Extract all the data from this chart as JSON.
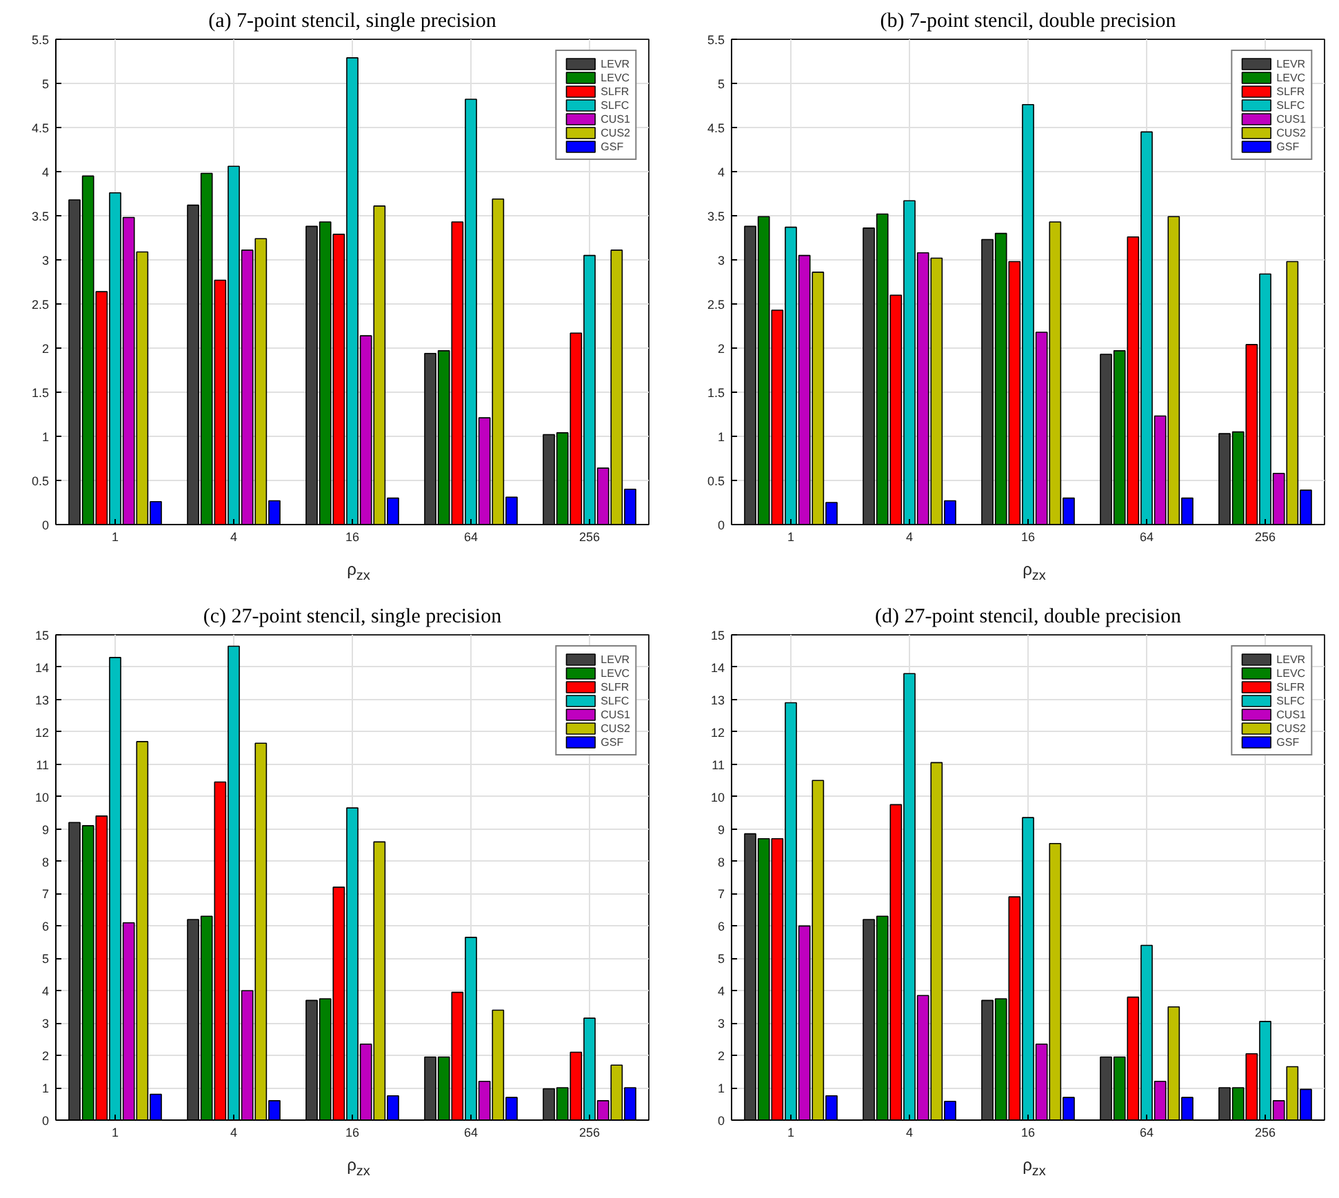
{
  "chart_data": [
    {
      "type": "bar",
      "title": "(a) 7-point stencil, single precision",
      "xlabel": "ρ$_{zx}$",
      "categories": [
        "1",
        "4",
        "16",
        "64",
        "256"
      ],
      "ylim": [
        0,
        5.5
      ],
      "yticks": [
        0,
        0.5,
        1,
        1.5,
        2,
        2.5,
        3,
        3.5,
        4,
        4.5,
        5,
        5.5
      ],
      "grid": true,
      "legend": "top right",
      "series": [
        {
          "name": "LEVR",
          "color": "#404040",
          "values": [
            3.68,
            3.62,
            3.38,
            1.94,
            1.02
          ]
        },
        {
          "name": "LEVC",
          "color": "#008000",
          "values": [
            3.95,
            3.98,
            3.43,
            1.97,
            1.04
          ]
        },
        {
          "name": "SLFR",
          "color": "#ff0000",
          "values": [
            2.64,
            2.77,
            3.29,
            3.43,
            2.17
          ]
        },
        {
          "name": "SLFC",
          "color": "#00bfbf",
          "values": [
            3.76,
            4.06,
            5.29,
            4.82,
            3.05
          ]
        },
        {
          "name": "CUS1",
          "color": "#bf00bf",
          "values": [
            3.48,
            3.11,
            2.14,
            1.21,
            0.64
          ]
        },
        {
          "name": "CUS2",
          "color": "#bfbf00",
          "values": [
            3.09,
            3.24,
            3.61,
            3.69,
            3.11
          ]
        },
        {
          "name": "GSF",
          "color": "#0000ff",
          "values": [
            0.26,
            0.27,
            0.3,
            0.31,
            0.4
          ]
        }
      ]
    },
    {
      "type": "bar",
      "title": "(b) 7-point stencil, double precision",
      "xlabel": "ρ$_{zx}$",
      "categories": [
        "1",
        "4",
        "16",
        "64",
        "256"
      ],
      "ylim": [
        0,
        5.5
      ],
      "yticks": [
        0,
        0.5,
        1,
        1.5,
        2,
        2.5,
        3,
        3.5,
        4,
        4.5,
        5,
        5.5
      ],
      "grid": true,
      "legend": "top right",
      "series": [
        {
          "name": "LEVR",
          "color": "#404040",
          "values": [
            3.38,
            3.36,
            3.23,
            1.93,
            1.03
          ]
        },
        {
          "name": "LEVC",
          "color": "#008000",
          "values": [
            3.49,
            3.52,
            3.3,
            1.97,
            1.05
          ]
        },
        {
          "name": "SLFR",
          "color": "#ff0000",
          "values": [
            2.43,
            2.6,
            2.98,
            3.26,
            2.04
          ]
        },
        {
          "name": "SLFC",
          "color": "#00bfbf",
          "values": [
            3.37,
            3.67,
            4.76,
            4.45,
            2.84
          ]
        },
        {
          "name": "CUS1",
          "color": "#bf00bf",
          "values": [
            3.05,
            3.08,
            2.18,
            1.23,
            0.58
          ]
        },
        {
          "name": "CUS2",
          "color": "#bfbf00",
          "values": [
            2.86,
            3.02,
            3.43,
            3.49,
            2.98
          ]
        },
        {
          "name": "GSF",
          "color": "#0000ff",
          "values": [
            0.25,
            0.27,
            0.3,
            0.3,
            0.39
          ]
        }
      ]
    },
    {
      "type": "bar",
      "title": "(c) 27-point stencil, single precision",
      "xlabel": "ρ$_{zx}$",
      "categories": [
        "1",
        "4",
        "16",
        "64",
        "256"
      ],
      "ylim": [
        0,
        15
      ],
      "yticks": [
        0,
        1,
        2,
        3,
        4,
        5,
        6,
        7,
        8,
        9,
        10,
        11,
        12,
        13,
        14,
        15
      ],
      "grid": true,
      "legend": "top right",
      "series": [
        {
          "name": "LEVR",
          "color": "#404040",
          "values": [
            9.2,
            6.2,
            3.7,
            1.95,
            0.97
          ]
        },
        {
          "name": "LEVC",
          "color": "#008000",
          "values": [
            9.1,
            6.3,
            3.75,
            1.95,
            1.0
          ]
        },
        {
          "name": "SLFR",
          "color": "#ff0000",
          "values": [
            9.4,
            10.45,
            7.2,
            3.95,
            2.1
          ]
        },
        {
          "name": "SLFC",
          "color": "#00bfbf",
          "values": [
            14.3,
            14.65,
            9.65,
            5.65,
            3.15
          ]
        },
        {
          "name": "CUS1",
          "color": "#bf00bf",
          "values": [
            6.1,
            4.0,
            2.35,
            1.2,
            0.6
          ]
        },
        {
          "name": "CUS2",
          "color": "#bfbf00",
          "values": [
            11.7,
            11.65,
            8.6,
            3.4,
            1.7
          ]
        },
        {
          "name": "GSF",
          "color": "#0000ff",
          "values": [
            0.8,
            0.6,
            0.75,
            0.7,
            1.0
          ]
        }
      ]
    },
    {
      "type": "bar",
      "title": "(d) 27-point stencil, double precision",
      "xlabel": "ρ$_{zx}$",
      "categories": [
        "1",
        "4",
        "16",
        "64",
        "256"
      ],
      "ylim": [
        0,
        15
      ],
      "yticks": [
        0,
        1,
        2,
        3,
        4,
        5,
        6,
        7,
        8,
        9,
        10,
        11,
        12,
        13,
        14,
        15
      ],
      "grid": true,
      "legend": "top right",
      "series": [
        {
          "name": "LEVR",
          "color": "#404040",
          "values": [
            8.85,
            6.2,
            3.7,
            1.95,
            1.0
          ]
        },
        {
          "name": "LEVC",
          "color": "#008000",
          "values": [
            8.7,
            6.3,
            3.75,
            1.95,
            1.0
          ]
        },
        {
          "name": "SLFR",
          "color": "#ff0000",
          "values": [
            8.7,
            9.75,
            6.9,
            3.8,
            2.05
          ]
        },
        {
          "name": "SLFC",
          "color": "#00bfbf",
          "values": [
            12.9,
            13.8,
            9.35,
            5.4,
            3.05
          ]
        },
        {
          "name": "CUS1",
          "color": "#bf00bf",
          "values": [
            6.0,
            3.85,
            2.35,
            1.2,
            0.6
          ]
        },
        {
          "name": "CUS2",
          "color": "#bfbf00",
          "values": [
            10.5,
            11.05,
            8.55,
            3.5,
            1.65
          ]
        },
        {
          "name": "GSF",
          "color": "#0000ff",
          "values": [
            0.75,
            0.58,
            0.7,
            0.7,
            0.95
          ]
        }
      ]
    }
  ]
}
